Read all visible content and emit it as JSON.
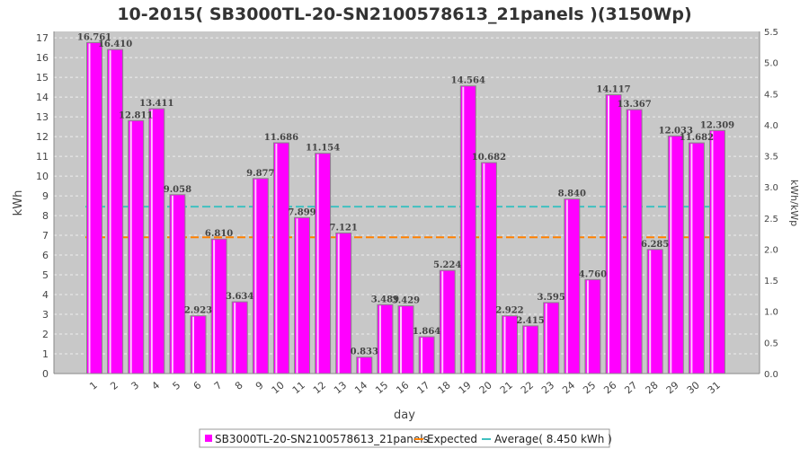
{
  "chart_data": {
    "type": "bar",
    "title": "10-2015( SB3000TL-20-SN2100578613_21panels )(3150Wp)",
    "xlabel": "day",
    "ylabel": "kWh",
    "y2label": "kWh/kWp",
    "ylim": [
      0,
      17.325
    ],
    "y2lim": [
      0,
      5.5
    ],
    "yticks": [
      0,
      1,
      2,
      3,
      4,
      5,
      6,
      7,
      8,
      9,
      10,
      11,
      12,
      13,
      14,
      15,
      16,
      17
    ],
    "y2ticks": [
      "0.0",
      "0.5",
      "1.0",
      "1.5",
      "2.0",
      "2.5",
      "3.0",
      "3.5",
      "4.0",
      "4.5",
      "5.0",
      "5.5"
    ],
    "categories": [
      "1",
      "2",
      "3",
      "4",
      "5",
      "6",
      "7",
      "8",
      "9",
      "10",
      "11",
      "12",
      "13",
      "14",
      "15",
      "16",
      "17",
      "18",
      "19",
      "20",
      "21",
      "22",
      "23",
      "24",
      "25",
      "26",
      "27",
      "28",
      "29",
      "30",
      "31"
    ],
    "series": [
      {
        "name": "SB3000TL-20-SN2100578613_21panels",
        "color": "#ff00ff",
        "values": [
          16.761,
          16.41,
          12.811,
          13.411,
          9.058,
          2.923,
          6.81,
          3.634,
          9.877,
          11.686,
          7.899,
          11.154,
          7.121,
          0.833,
          3.489,
          3.429,
          1.864,
          5.224,
          14.564,
          10.682,
          2.922,
          2.415,
          3.595,
          8.84,
          4.76,
          14.117,
          13.367,
          6.285,
          12.033,
          11.682,
          12.309
        ]
      }
    ],
    "expected": {
      "name": "Expected",
      "value": 6.9,
      "color": "#ff8000"
    },
    "average": {
      "name": "Average( 8.450 kWh )",
      "value": 8.45,
      "color": "#40c0c0"
    },
    "legend_position": "bottom"
  }
}
